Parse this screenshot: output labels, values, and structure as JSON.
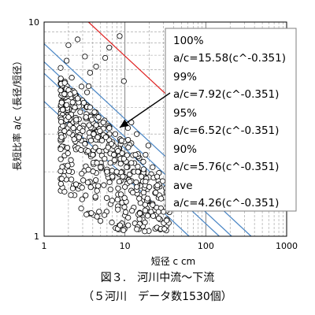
{
  "chart_data": {
    "type": "scatter",
    "x_scale": "log",
    "y_scale": "log",
    "xlim": [
      1,
      1000
    ],
    "ylim": [
      1,
      10
    ],
    "x_ticks": [
      "1",
      "10",
      "100",
      "1000"
    ],
    "y_ticks": [
      "1",
      "10"
    ],
    "xlabel": "短径 c cm",
    "ylabel": "長短比率 a/c（長径/短径）",
    "grid": "log minor dashed",
    "legend_box": {
      "entries": [
        {
          "name": "100%",
          "formula": "a/c=15.58(c^-0.351)",
          "k": 15.58,
          "exp": -0.351,
          "color": "#e02020"
        },
        {
          "name": "99%",
          "formula": "a/c=7.92(c^-0.351)",
          "k": 7.92,
          "exp": -0.351,
          "color": "#4a86c5"
        },
        {
          "name": "95%",
          "formula": "a/c=6.52(c^-0.351)",
          "k": 6.52,
          "exp": -0.351,
          "color": "#4a86c5"
        },
        {
          "name": "90%",
          "formula": "a/c=5.76(c^-0.351)",
          "k": 5.76,
          "exp": -0.351,
          "color": "#4a86c5"
        },
        {
          "name": "ave",
          "formula": "a/c=4.26(c^-0.351)",
          "k": 4.26,
          "exp": -0.351,
          "color": "#4a86c5"
        }
      ]
    },
    "point_count": 1530,
    "points_sample": [
      [
        1.6,
        4.8
      ],
      [
        1.7,
        3.9
      ],
      [
        1.8,
        5.2
      ],
      [
        1.9,
        4.1
      ],
      [
        2.0,
        3.6
      ],
      [
        2.1,
        4.6
      ],
      [
        2.2,
        5.5
      ],
      [
        2.3,
        3.2
      ],
      [
        2.4,
        4.0
      ],
      [
        2.5,
        3.5
      ],
      [
        2.6,
        4.4
      ],
      [
        2.7,
        2.9
      ],
      [
        2.8,
        3.8
      ],
      [
        2.9,
        5.0
      ],
      [
        3.0,
        3.1
      ],
      [
        3.1,
        4.2
      ],
      [
        3.2,
        2.7
      ],
      [
        3.3,
        3.6
      ],
      [
        3.4,
        4.7
      ],
      [
        3.5,
        2.5
      ],
      [
        3.6,
        3.3
      ],
      [
        3.7,
        4.0
      ],
      [
        3.8,
        2.8
      ],
      [
        3.9,
        3.5
      ],
      [
        4.0,
        2.4
      ],
      [
        4.1,
        3.0
      ],
      [
        4.2,
        3.8
      ],
      [
        4.3,
        2.6
      ],
      [
        4.4,
        3.3
      ],
      [
        4.5,
        2.2
      ],
      [
        4.6,
        2.9
      ],
      [
        4.7,
        3.6
      ],
      [
        4.8,
        2.5
      ],
      [
        4.9,
        3.1
      ],
      [
        5.0,
        2.1
      ],
      [
        5.2,
        2.8
      ],
      [
        5.4,
        3.4
      ],
      [
        5.6,
        2.3
      ],
      [
        5.8,
        2.9
      ],
      [
        6.0,
        2.0
      ],
      [
        6.2,
        2.6
      ],
      [
        6.4,
        3.2
      ],
      [
        6.6,
        2.2
      ],
      [
        6.8,
        2.7
      ],
      [
        7.0,
        1.9
      ],
      [
        7.3,
        2.4
      ],
      [
        7.6,
        3.0
      ],
      [
        7.9,
        2.0
      ],
      [
        8.2,
        2.5
      ],
      [
        8.5,
        1.8
      ],
      [
        8.8,
        2.3
      ],
      [
        9.1,
        2.8
      ],
      [
        9.4,
        1.9
      ],
      [
        9.7,
        2.3
      ],
      [
        10.0,
        1.7
      ],
      [
        10.5,
        2.1
      ],
      [
        11.0,
        2.6
      ],
      [
        11.5,
        1.8
      ],
      [
        12.0,
        2.2
      ],
      [
        12.5,
        1.6
      ],
      [
        13.0,
        2.0
      ],
      [
        13.5,
        2.4
      ],
      [
        14.0,
        1.7
      ],
      [
        14.5,
        2.0
      ],
      [
        15.0,
        1.5
      ],
      [
        16.0,
        1.9
      ],
      [
        17.0,
        1.6
      ],
      [
        18.0,
        1.8
      ],
      [
        19.0,
        1.5
      ],
      [
        20.0,
        1.7
      ],
      [
        22.0,
        1.4
      ],
      [
        24.0,
        1.6
      ],
      [
        26.0,
        1.3
      ],
      [
        28.0,
        1.5
      ],
      [
        30.0,
        1.3
      ],
      [
        2.0,
        7.8
      ],
      [
        2.6,
        8.3
      ],
      [
        3.2,
        6.9
      ],
      [
        4.4,
        6.2
      ],
      [
        5.7,
        6.8
      ],
      [
        6.4,
        7.6
      ],
      [
        8.6,
        8.6
      ],
      [
        9.7,
        5.3
      ],
      [
        1.9,
        6.6
      ],
      [
        3.7,
        5.8
      ],
      [
        12.0,
        3.4
      ],
      [
        14.0,
        3.0
      ],
      [
        18.0,
        2.4
      ],
      [
        22.0,
        2.1
      ],
      [
        25.0,
        1.9
      ]
    ]
  },
  "caption": {
    "line1": "図３.　河川中流〜下流",
    "line2": "（５河川　データ数1530個）"
  }
}
